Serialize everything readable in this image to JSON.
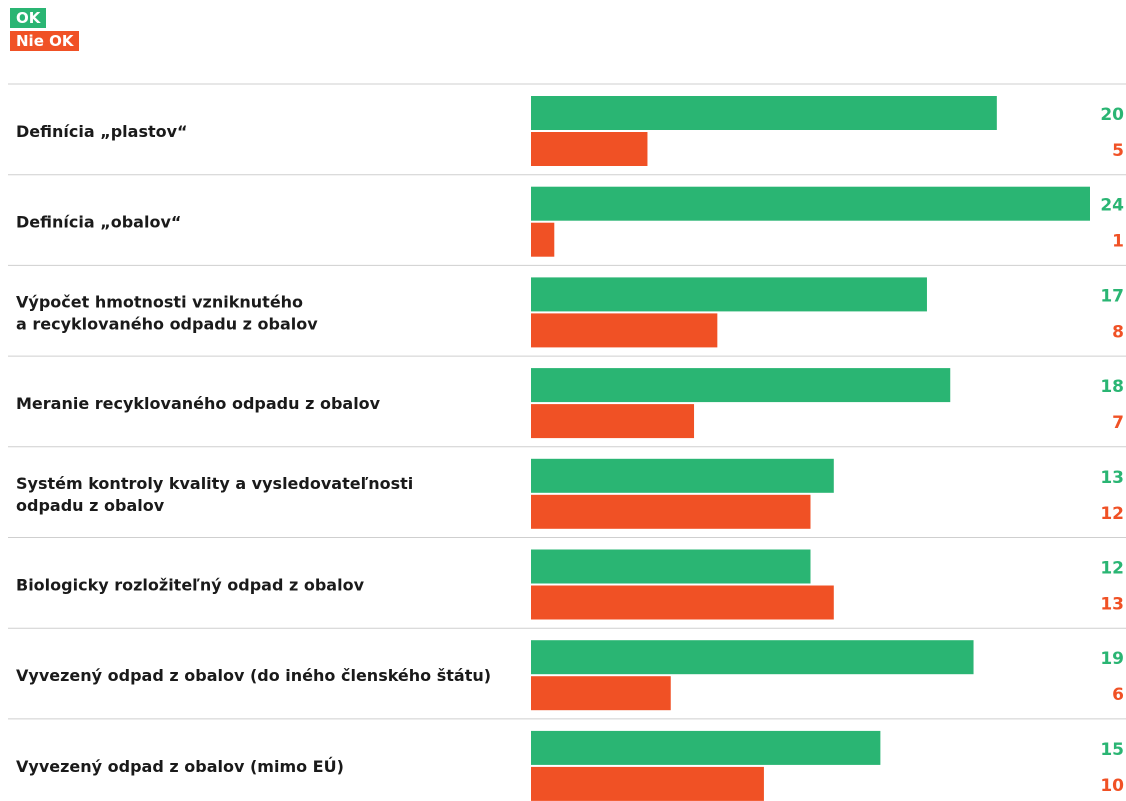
{
  "colors": {
    "ok": "#2ab573",
    "nok": "#f05125",
    "divider": "#cfcfcf",
    "text": "#1a1a1a"
  },
  "legend": {
    "ok_label": "OK",
    "nok_label": "Nie OK"
  },
  "chart_data": {
    "type": "bar",
    "orientation": "horizontal",
    "categories": [
      [
        "Definícia „plastov“"
      ],
      [
        "Definícia „obalov“"
      ],
      [
        "Výpočet hmotnosti vzniknutého",
        "a recyklovaného odpadu z obalov"
      ],
      [
        "Meranie recyklovaného odpadu z obalov"
      ],
      [
        "Systém kontroly kvality a vysledovateľnosti",
        "odpadu z obalov"
      ],
      [
        "Biologicky rozložiteľný odpad z obalov"
      ],
      [
        "Vyvezený odpad z obalov (do iného členského štátu)"
      ],
      [
        "Vyvezený odpad z obalov (mimo EÚ)"
      ]
    ],
    "series": [
      {
        "name": "OK",
        "values": [
          20,
          24,
          17,
          18,
          13,
          12,
          19,
          15
        ]
      },
      {
        "name": "Nie OK",
        "values": [
          5,
          1,
          8,
          7,
          12,
          13,
          6,
          10
        ]
      }
    ],
    "xlim": [
      0,
      24
    ],
    "legend_position": "top-left",
    "grid": false
  }
}
